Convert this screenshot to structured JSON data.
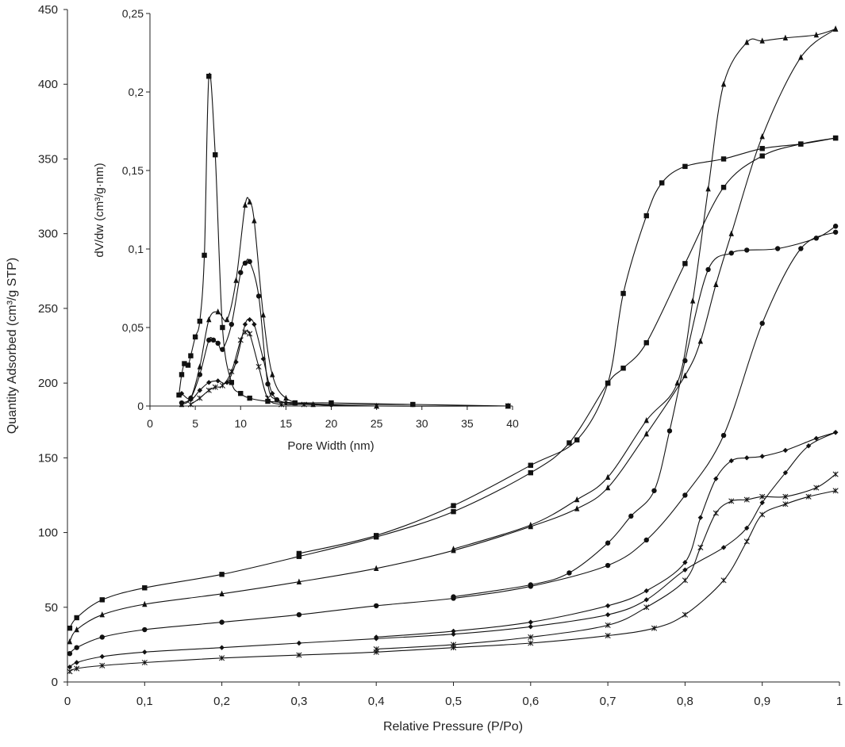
{
  "chart_data": [
    {
      "type": "line",
      "xlabel": "Relative Pressure (P/Po)",
      "ylabel": "Quantity Adsorbed (cm³/g STP)",
      "xlim": [
        0,
        1
      ],
      "ylim": [
        0,
        450
      ],
      "x_ticks": [
        "0",
        "0,1",
        "0,2",
        "0,3",
        "0,4",
        "0,5",
        "0,6",
        "0,7",
        "0,8",
        "0,9",
        "1"
      ],
      "y_ticks": [
        "0",
        "50",
        "100",
        "150",
        "200",
        "250",
        "300",
        "350",
        "400",
        "450"
      ],
      "grid": false,
      "legend": "none",
      "series": [
        {
          "marker": "square",
          "adsorption": [
            [
              0.003,
              36
            ],
            [
              0.012,
              43
            ],
            [
              0.045,
              55
            ],
            [
              0.1,
              63
            ],
            [
              0.2,
              72
            ],
            [
              0.3,
              84
            ],
            [
              0.4,
              97
            ],
            [
              0.5,
              114
            ],
            [
              0.6,
              140
            ],
            [
              0.65,
              160
            ],
            [
              0.7,
              200
            ],
            [
              0.72,
              210
            ],
            [
              0.75,
              227
            ],
            [
              0.8,
              280
            ],
            [
              0.85,
              331
            ],
            [
              0.9,
              352
            ],
            [
              0.95,
              360
            ],
            [
              0.995,
              364
            ]
          ],
          "desorption": [
            [
              0.995,
              364
            ],
            [
              0.95,
              360
            ],
            [
              0.9,
              357
            ],
            [
              0.85,
              350
            ],
            [
              0.8,
              345
            ],
            [
              0.77,
              334
            ],
            [
              0.75,
              312
            ],
            [
              0.72,
              260
            ],
            [
              0.7,
              200
            ],
            [
              0.66,
              162
            ],
            [
              0.6,
              145
            ],
            [
              0.5,
              118
            ],
            [
              0.4,
              98
            ],
            [
              0.3,
              86
            ]
          ]
        },
        {
          "marker": "triangle",
          "adsorption": [
            [
              0.003,
              27
            ],
            [
              0.012,
              35
            ],
            [
              0.045,
              45
            ],
            [
              0.1,
              52
            ],
            [
              0.2,
              59
            ],
            [
              0.3,
              67
            ],
            [
              0.4,
              76
            ],
            [
              0.5,
              88
            ],
            [
              0.6,
              104
            ],
            [
              0.66,
              116
            ],
            [
              0.7,
              130
            ],
            [
              0.75,
              166
            ],
            [
              0.8,
              205
            ],
            [
              0.82,
              228
            ],
            [
              0.84,
              266
            ],
            [
              0.86,
              300
            ],
            [
              0.9,
              365
            ],
            [
              0.95,
              418
            ],
            [
              0.995,
              437
            ]
          ],
          "desorption": [
            [
              0.995,
              437
            ],
            [
              0.97,
              433
            ],
            [
              0.93,
              431
            ],
            [
              0.9,
              429
            ],
            [
              0.88,
              428
            ],
            [
              0.85,
              400
            ],
            [
              0.83,
              330
            ],
            [
              0.81,
              255
            ],
            [
              0.79,
              200
            ],
            [
              0.75,
              175
            ],
            [
              0.7,
              137
            ],
            [
              0.66,
              122
            ],
            [
              0.6,
              105
            ],
            [
              0.5,
              89
            ]
          ]
        },
        {
          "marker": "circle",
          "adsorption": [
            [
              0.003,
              19
            ],
            [
              0.012,
              23
            ],
            [
              0.045,
              30
            ],
            [
              0.1,
              35
            ],
            [
              0.2,
              40
            ],
            [
              0.3,
              45
            ],
            [
              0.4,
              51
            ],
            [
              0.5,
              56
            ],
            [
              0.6,
              64
            ],
            [
              0.7,
              78
            ],
            [
              0.75,
              95
            ],
            [
              0.8,
              125
            ],
            [
              0.85,
              165
            ],
            [
              0.9,
              240
            ],
            [
              0.95,
              290
            ],
            [
              0.995,
              301
            ]
          ],
          "desorption": [
            [
              0.995,
              305
            ],
            [
              0.97,
              297
            ],
            [
              0.92,
              290
            ],
            [
              0.88,
              289
            ],
            [
              0.86,
              287
            ],
            [
              0.83,
              276
            ],
            [
              0.8,
              215
            ],
            [
              0.78,
              168
            ],
            [
              0.76,
              128
            ],
            [
              0.73,
              111
            ],
            [
              0.7,
              93
            ],
            [
              0.65,
              73
            ],
            [
              0.6,
              65
            ],
            [
              0.5,
              57
            ]
          ]
        },
        {
          "marker": "diamond",
          "adsorption": [
            [
              0.003,
              10
            ],
            [
              0.012,
              13
            ],
            [
              0.045,
              17
            ],
            [
              0.1,
              20
            ],
            [
              0.2,
              23
            ],
            [
              0.3,
              26
            ],
            [
              0.4,
              29
            ],
            [
              0.5,
              32
            ],
            [
              0.6,
              37
            ],
            [
              0.7,
              45
            ],
            [
              0.75,
              55
            ],
            [
              0.8,
              75
            ],
            [
              0.85,
              90
            ],
            [
              0.88,
              103
            ],
            [
              0.9,
              120
            ],
            [
              0.93,
              140
            ],
            [
              0.96,
              158
            ],
            [
              0.995,
              167
            ]
          ],
          "desorption": [
            [
              0.995,
              167
            ],
            [
              0.97,
              163
            ],
            [
              0.93,
              155
            ],
            [
              0.9,
              151
            ],
            [
              0.88,
              150
            ],
            [
              0.86,
              148
            ],
            [
              0.84,
              136
            ],
            [
              0.82,
              110
            ],
            [
              0.8,
              80
            ],
            [
              0.75,
              61
            ],
            [
              0.7,
              51
            ],
            [
              0.6,
              40
            ],
            [
              0.5,
              34
            ],
            [
              0.4,
              30
            ]
          ]
        },
        {
          "marker": "asterisk",
          "adsorption": [
            [
              0.003,
              7
            ],
            [
              0.012,
              9
            ],
            [
              0.045,
              11
            ],
            [
              0.1,
              13
            ],
            [
              0.2,
              16
            ],
            [
              0.3,
              18
            ],
            [
              0.4,
              20
            ],
            [
              0.5,
              23
            ],
            [
              0.6,
              26
            ],
            [
              0.7,
              31
            ],
            [
              0.76,
              36
            ],
            [
              0.8,
              45
            ],
            [
              0.85,
              68
            ],
            [
              0.88,
              94
            ],
            [
              0.9,
              112
            ],
            [
              0.93,
              119
            ],
            [
              0.96,
              124
            ],
            [
              0.995,
              128
            ]
          ],
          "desorption": [
            [
              0.995,
              139
            ],
            [
              0.97,
              130
            ],
            [
              0.93,
              124
            ],
            [
              0.9,
              124
            ],
            [
              0.88,
              122
            ],
            [
              0.86,
              121
            ],
            [
              0.84,
              113
            ],
            [
              0.82,
              90
            ],
            [
              0.8,
              68
            ],
            [
              0.75,
              50
            ],
            [
              0.7,
              38
            ],
            [
              0.6,
              30
            ],
            [
              0.5,
              25
            ],
            [
              0.4,
              22
            ]
          ]
        }
      ]
    },
    {
      "type": "line",
      "xlabel": "Pore Width (nm)",
      "ylabel": "dV/dw (cm³/g·nm)",
      "xlim": [
        0,
        40
      ],
      "ylim": [
        0,
        0.25
      ],
      "x_ticks": [
        "0",
        "5",
        "10",
        "15",
        "20",
        "25",
        "30",
        "35",
        "40"
      ],
      "y_ticks": [
        "0",
        "0,05",
        "0,1",
        "0,15",
        "0,2",
        "0,25"
      ],
      "grid": false,
      "legend": "none",
      "series": [
        {
          "marker": "square",
          "points": [
            [
              3.2,
              0.007
            ],
            [
              3.5,
              0.02
            ],
            [
              3.8,
              0.027
            ],
            [
              4.2,
              0.026
            ],
            [
              4.5,
              0.032
            ],
            [
              5,
              0.044
            ],
            [
              5.5,
              0.054
            ],
            [
              6,
              0.096
            ],
            [
              6.5,
              0.21
            ],
            [
              7.2,
              0.16
            ],
            [
              8,
              0.05
            ],
            [
              9,
              0.015
            ],
            [
              10,
              0.008
            ],
            [
              11,
              0.005
            ],
            [
              13,
              0.003
            ],
            [
              16,
              0.002
            ],
            [
              20,
              0.002
            ],
            [
              29,
              0.001
            ],
            [
              39.5,
              0
            ]
          ]
        },
        {
          "marker": "triangle",
          "points": [
            [
              3.5,
              0.001
            ],
            [
              4.5,
              0.005
            ],
            [
              5.5,
              0.025
            ],
            [
              6.5,
              0.055
            ],
            [
              7.5,
              0.06
            ],
            [
              8.5,
              0.055
            ],
            [
              9.5,
              0.08
            ],
            [
              10.5,
              0.128
            ],
            [
              11,
              0.13
            ],
            [
              11.5,
              0.118
            ],
            [
              12.5,
              0.058
            ],
            [
              13.5,
              0.02
            ],
            [
              15,
              0.005
            ],
            [
              18,
              0.001
            ],
            [
              25,
              0
            ],
            [
              39.5,
              0
            ]
          ]
        },
        {
          "marker": "circle",
          "points": [
            [
              3.5,
              0.002
            ],
            [
              4.5,
              0.005
            ],
            [
              5.5,
              0.02
            ],
            [
              6.5,
              0.042
            ],
            [
              7,
              0.042
            ],
            [
              7.5,
              0.04
            ],
            [
              8,
              0.036
            ],
            [
              9,
              0.052
            ],
            [
              10,
              0.085
            ],
            [
              10.5,
              0.091
            ],
            [
              11,
              0.092
            ],
            [
              12,
              0.07
            ],
            [
              13,
              0.014
            ],
            [
              14,
              0.004
            ],
            [
              16,
              0.002
            ],
            [
              20,
              0.001
            ],
            [
              29,
              0.001
            ]
          ]
        },
        {
          "marker": "diamond",
          "points": [
            [
              3.5,
              0.008
            ],
            [
              4.5,
              0.004
            ],
            [
              5.5,
              0.01
            ],
            [
              6.5,
              0.015
            ],
            [
              7.5,
              0.016
            ],
            [
              8.5,
              0.015
            ],
            [
              9.5,
              0.028
            ],
            [
              10.5,
              0.052
            ],
            [
              11,
              0.055
            ],
            [
              11.5,
              0.052
            ],
            [
              12.5,
              0.03
            ],
            [
              13.5,
              0.008
            ],
            [
              15,
              0.002
            ],
            [
              18,
              0.001
            ]
          ]
        },
        {
          "marker": "asterisk",
          "points": [
            [
              4.5,
              0.001
            ],
            [
              5.5,
              0.005
            ],
            [
              6.5,
              0.01
            ],
            [
              7.2,
              0.012
            ],
            [
              8,
              0.013
            ],
            [
              9,
              0.022
            ],
            [
              10,
              0.042
            ],
            [
              10.5,
              0.047
            ],
            [
              11,
              0.046
            ],
            [
              12,
              0.025
            ],
            [
              13,
              0.005
            ],
            [
              14.5,
              0.001
            ],
            [
              17,
              0.001
            ],
            [
              25,
              0
            ],
            [
              39.5,
              0
            ]
          ]
        }
      ]
    }
  ]
}
